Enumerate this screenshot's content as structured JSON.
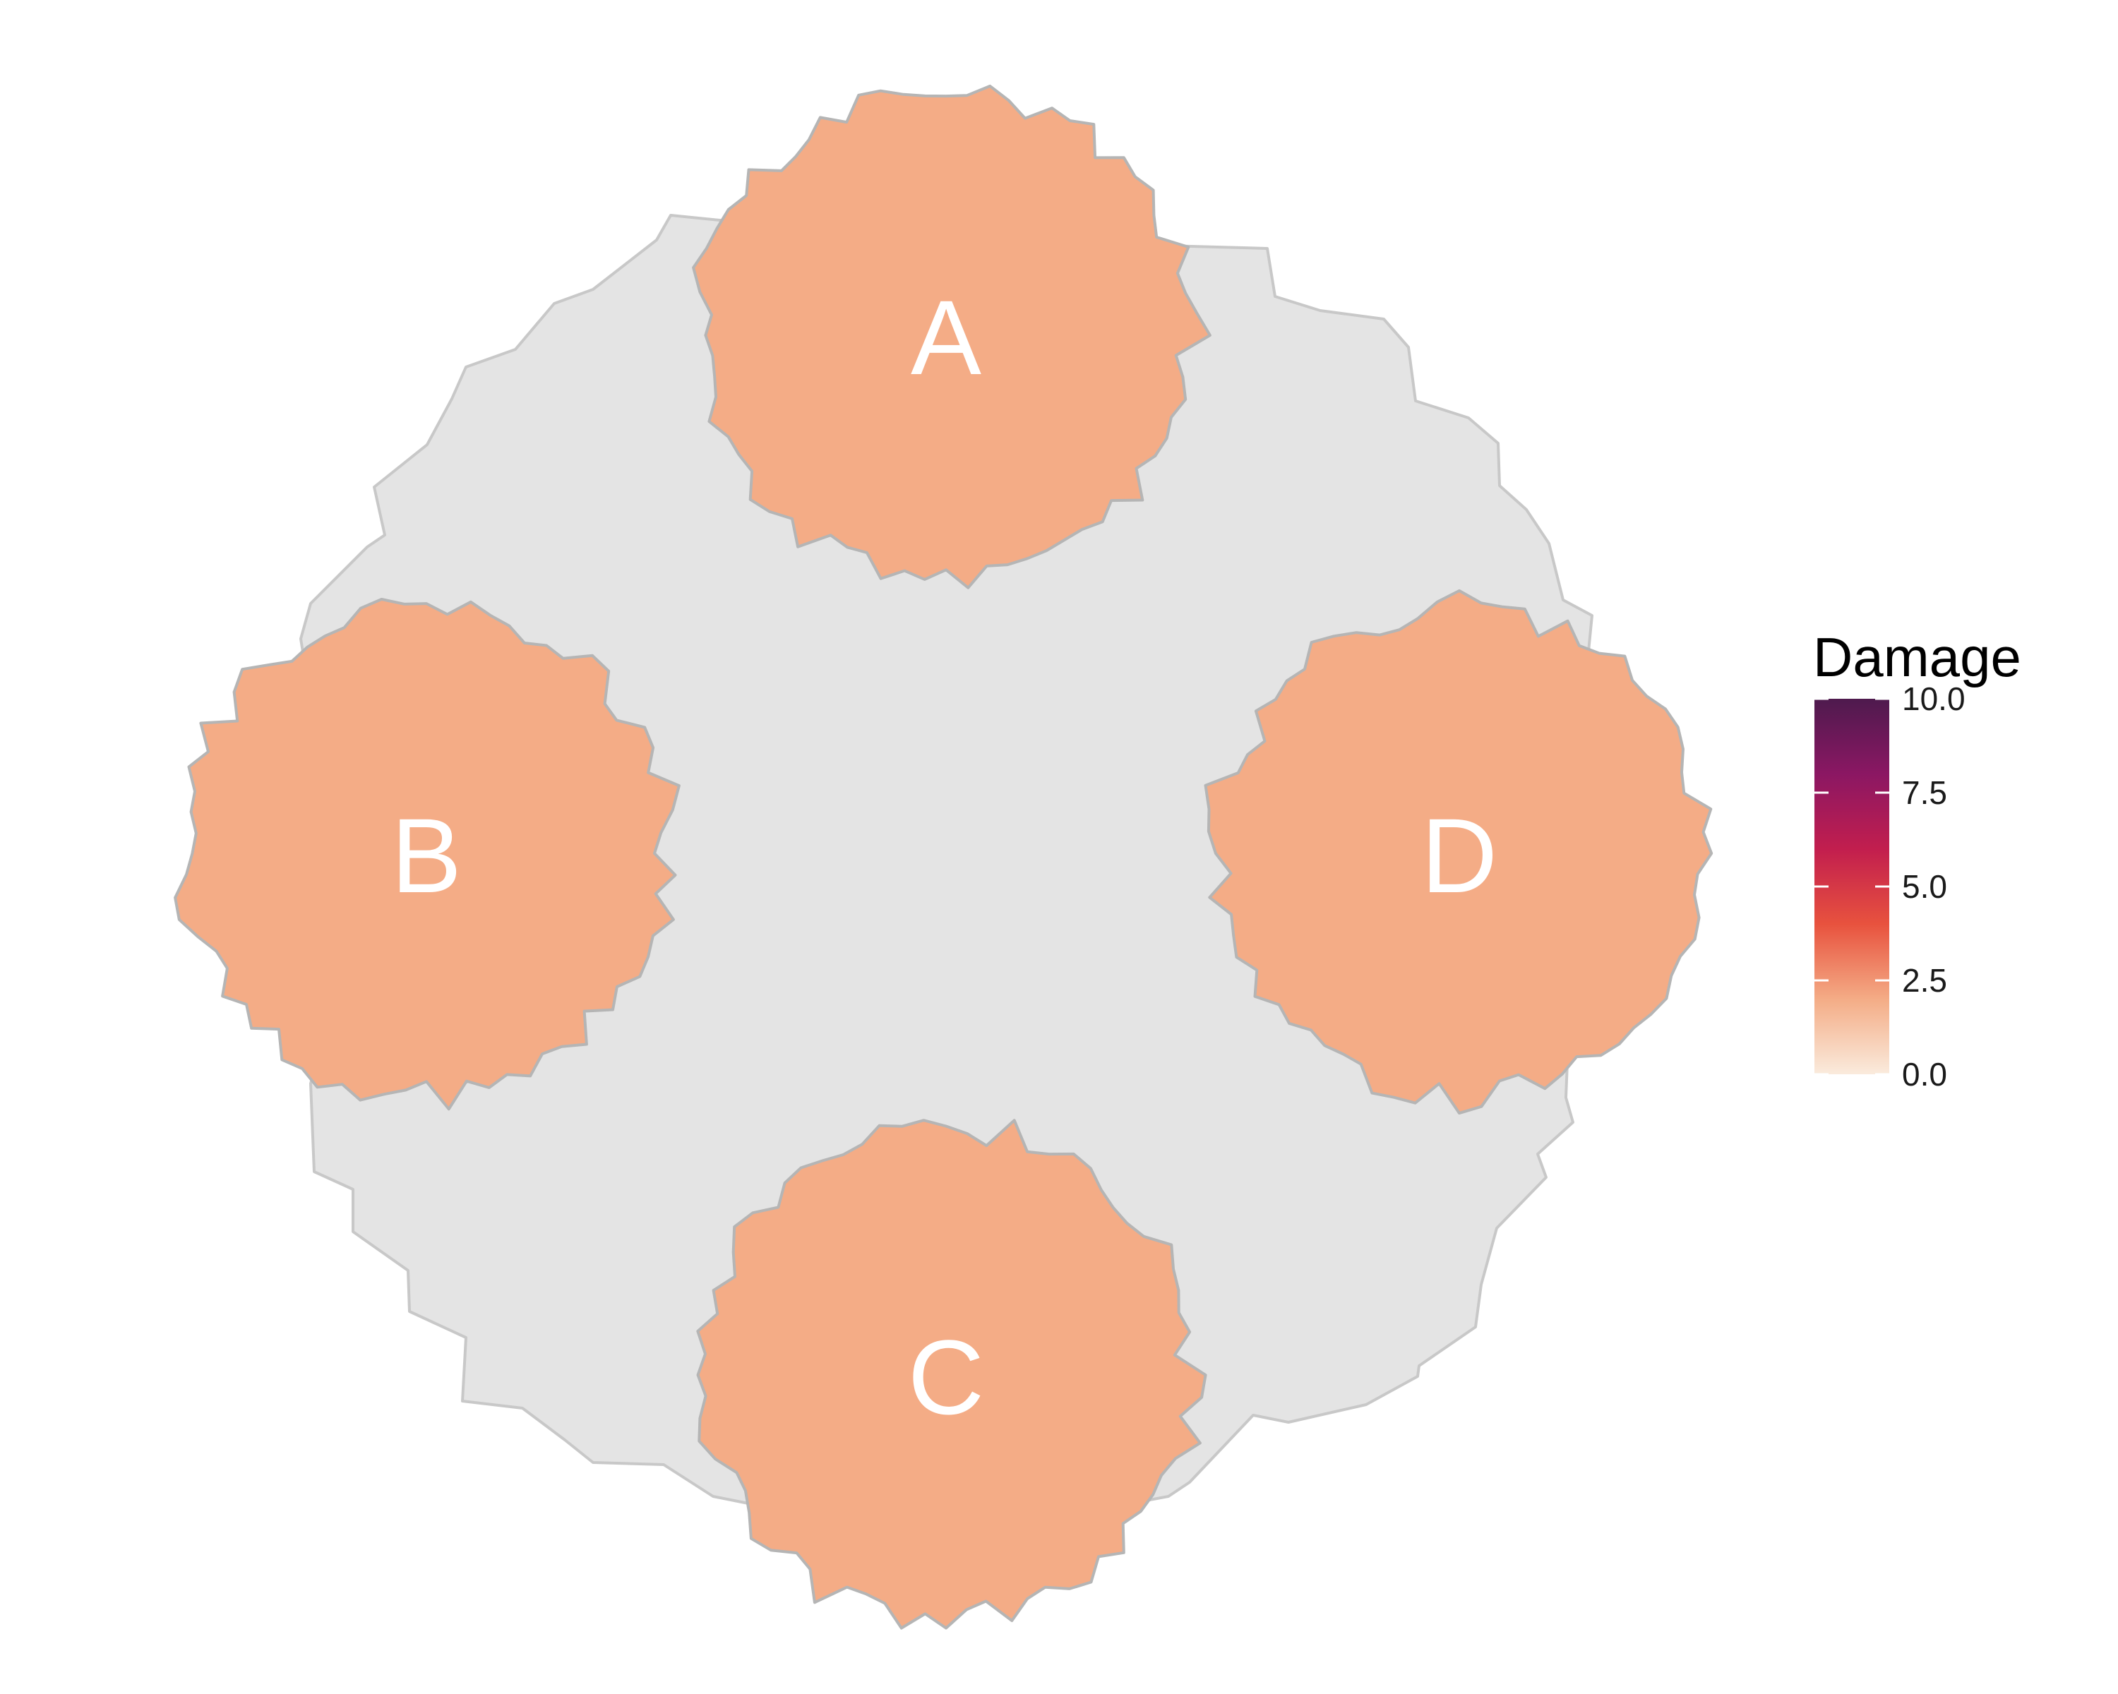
{
  "diagram": {
    "background_region": {
      "fill": "#e4e4e4",
      "stroke": "#c8c8c8"
    },
    "regions": [
      {
        "id": "A",
        "label": "A",
        "damage": 2.5,
        "fill": "#f4ac86"
      },
      {
        "id": "B",
        "label": "B",
        "damage": 2.5,
        "fill": "#f4ac86"
      },
      {
        "id": "C",
        "label": "C",
        "damage": 2.5,
        "fill": "#f4ac86"
      },
      {
        "id": "D",
        "label": "D",
        "damage": 2.5,
        "fill": "#f4ac86"
      }
    ]
  },
  "legend": {
    "title": "Damage",
    "min": 0.0,
    "max": 10.0,
    "ticks": [
      "0.0",
      "2.5",
      "5.0",
      "7.5",
      "10.0"
    ],
    "colors": [
      "#faebdd",
      "#f4ac86",
      "#e8523e",
      "#c21e4e",
      "#8b1763",
      "#4e1a4e"
    ]
  }
}
